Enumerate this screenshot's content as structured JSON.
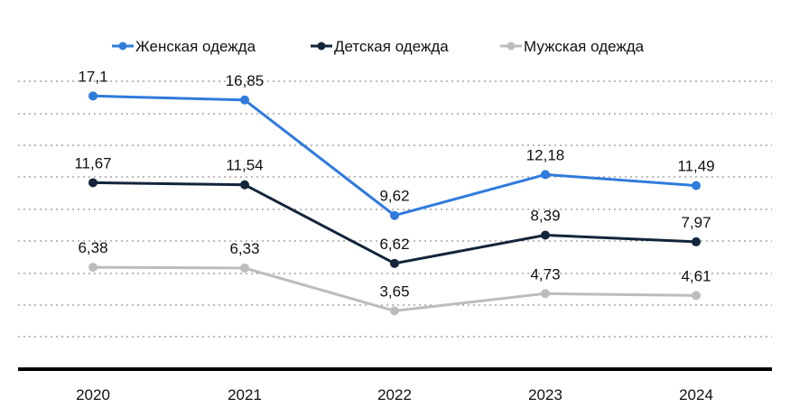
{
  "chart_data": {
    "type": "line",
    "title": "",
    "xlabel": "",
    "ylabel": "",
    "categories": [
      "2020",
      "2021",
      "2022",
      "2023",
      "2024"
    ],
    "series": [
      {
        "name": "Женская одежда",
        "color": "#2f7bdc",
        "values": [
          17.1,
          16.85,
          9.62,
          12.18,
          11.49
        ],
        "labels": [
          "17,1",
          "16,85",
          "9,62",
          "12,18",
          "11,49"
        ]
      },
      {
        "name": "Детская одежда",
        "color": "#13253a",
        "values": [
          11.67,
          11.54,
          6.62,
          8.39,
          7.97
        ],
        "labels": [
          "11,67",
          "11,54",
          "6,62",
          "8,39",
          "7,97"
        ]
      },
      {
        "name": "Мужская одежда",
        "color": "#bcbcbc",
        "values": [
          6.38,
          6.33,
          3.65,
          4.73,
          4.61
        ],
        "labels": [
          "6,38",
          "6,33",
          "3,65",
          "4,73",
          "4,61"
        ]
      }
    ],
    "grid": true,
    "legend_position": "top",
    "ylim": [
      0,
      20
    ]
  }
}
